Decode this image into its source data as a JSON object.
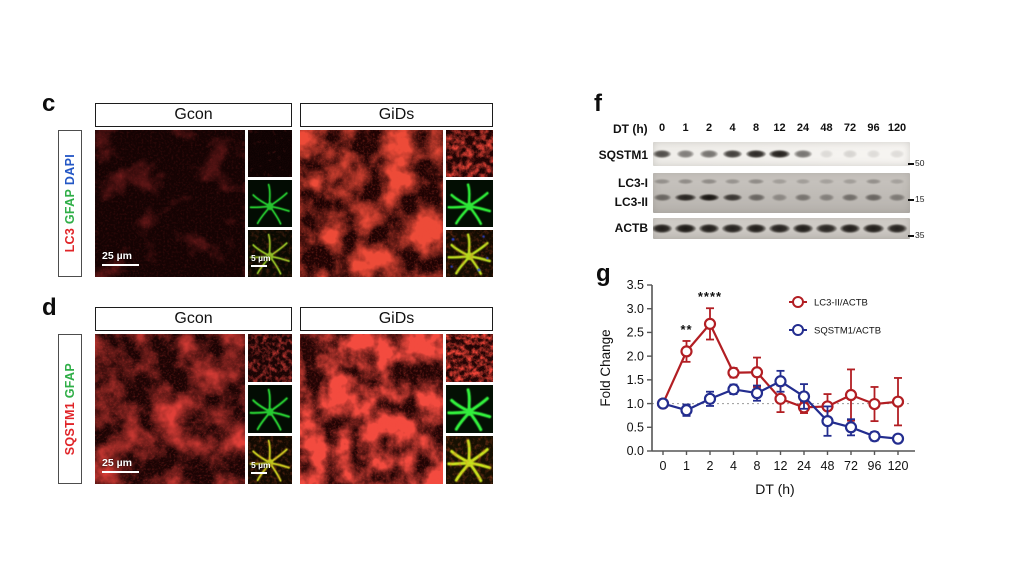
{
  "panel_c": {
    "label": "c",
    "columns": [
      "Gcon",
      "GiDs"
    ],
    "channels": [
      {
        "text": "LC3",
        "color": "#e02428"
      },
      {
        "text": "GFAP",
        "color": "#2fae47"
      },
      {
        "text": "DAPI",
        "color": "#2457c5"
      }
    ],
    "scale_main": "25 µm",
    "scale_inset": "5 µm"
  },
  "panel_d": {
    "label": "d",
    "columns": [
      "Gcon",
      "GiDs"
    ],
    "channels": [
      {
        "text": "SQSTM1",
        "color": "#e02428"
      },
      {
        "text": "GFAP",
        "color": "#2fae47"
      }
    ],
    "scale_main": "25 µm",
    "scale_inset": "5 µm"
  },
  "panel_f": {
    "label": "f",
    "lane_header": "DT (h)",
    "lanes": [
      "0",
      "1",
      "2",
      "4",
      "8",
      "12",
      "24",
      "48",
      "72",
      "96",
      "120"
    ],
    "rows": [
      {
        "name": "SQSTM1",
        "marker": "50",
        "intensities": [
          0.72,
          0.5,
          0.55,
          0.78,
          0.88,
          0.92,
          0.55,
          0.1,
          0.13,
          0.1,
          0.1
        ]
      },
      {
        "name": "LC3-I",
        "marker": "",
        "intensities": [
          0.28,
          0.3,
          0.3,
          0.26,
          0.3,
          0.2,
          0.2,
          0.18,
          0.2,
          0.28,
          0.18
        ]
      },
      {
        "name": "LC3-II",
        "marker": "15",
        "intensities": [
          0.5,
          0.88,
          0.97,
          0.78,
          0.5,
          0.3,
          0.42,
          0.35,
          0.45,
          0.5,
          0.38
        ]
      },
      {
        "name": "ACTB",
        "marker": "35",
        "intensities": [
          0.92,
          0.95,
          0.92,
          0.9,
          0.92,
          0.9,
          0.92,
          0.88,
          0.92,
          0.92,
          0.9
        ]
      }
    ]
  },
  "chart_data": {
    "type": "line",
    "panel_label": "g",
    "categories": [
      "0",
      "1",
      "2",
      "4",
      "8",
      "12",
      "24",
      "48",
      "72",
      "96",
      "120"
    ],
    "series": [
      {
        "name": "LC3-II/ACTB",
        "color": "#b21e23",
        "values": [
          1.0,
          2.1,
          2.68,
          1.65,
          1.66,
          1.1,
          0.92,
          0.94,
          1.18,
          0.99,
          1.04
        ],
        "errors": [
          0.05,
          0.22,
          0.33,
          0.1,
          0.31,
          0.28,
          0.12,
          0.26,
          0.54,
          0.36,
          0.5
        ]
      },
      {
        "name": "SQSTM1/ACTB",
        "color": "#232d8f",
        "values": [
          1.0,
          0.86,
          1.1,
          1.3,
          1.22,
          1.47,
          1.15,
          0.63,
          0.5,
          0.31,
          0.26
        ],
        "errors": [
          0.04,
          0.12,
          0.15,
          0.1,
          0.16,
          0.22,
          0.26,
          0.31,
          0.17,
          0.09,
          0.08
        ]
      }
    ],
    "xlabel": "DT (h)",
    "ylabel": "Fold Change",
    "ylim": [
      0,
      3.5
    ],
    "ytick_step": 0.5,
    "reference_line": 1.0,
    "grid": false,
    "legend_position": "top-right",
    "annotations": [
      {
        "series": "LC3-II/ACTB",
        "x_index": 1,
        "label": "**"
      },
      {
        "series": "LC3-II/ACTB",
        "x_index": 2,
        "label": "****"
      }
    ]
  }
}
